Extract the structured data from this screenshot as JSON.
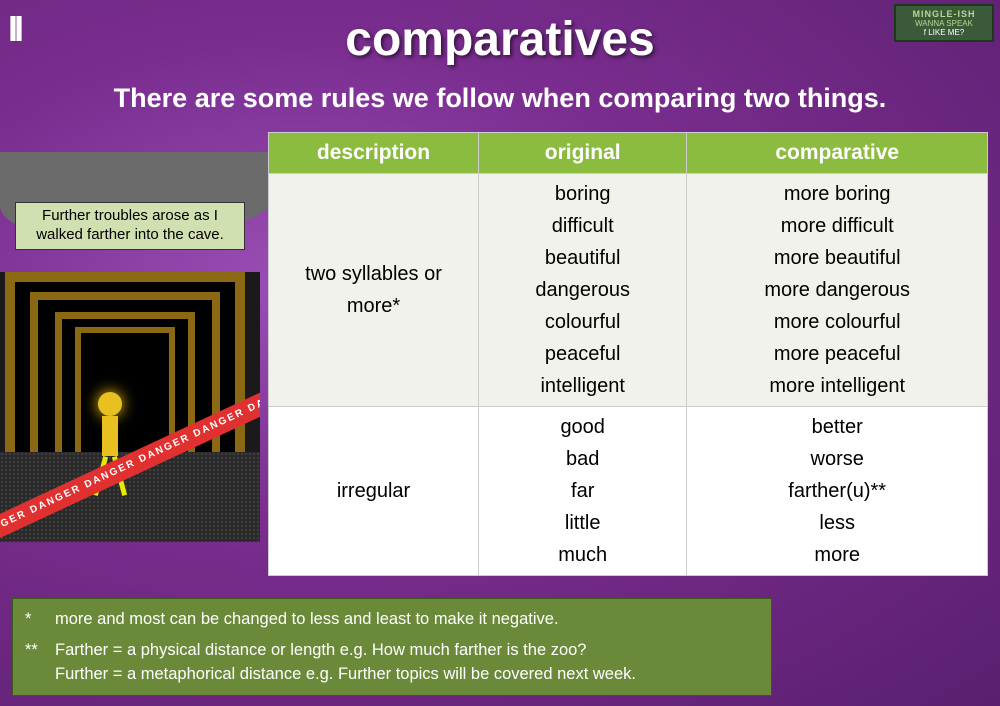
{
  "colors": {
    "bg_gradient_inner": "#9b4fb5",
    "bg_gradient_outer": "#5a1f6f",
    "header_green": "#8bbb3f",
    "row_alt": "#f2f2ec",
    "footnote_bg": "#6a8a3a",
    "speech_bg": "#d0e0b0",
    "danger_red": "#e03030"
  },
  "badge": {
    "title": "MINGLE-ISH",
    "sub": "WANNA SPEAK",
    "like": "f  LIKE ME?"
  },
  "title": "comparatives",
  "subtitle": "There are some rules we follow when comparing two things.",
  "speech": "Further troubles arose as I walked farther into the cave.",
  "danger_text": "DANGER   DANGER   DANGER   DANGER   DANGER   DANGER   DA",
  "table": {
    "headers": [
      "description",
      "original",
      "comparative"
    ],
    "rows": [
      {
        "desc": "two syllables or more*",
        "original": [
          "boring",
          "difficult",
          "beautiful",
          "dangerous",
          "colourful",
          "peaceful",
          "intelligent"
        ],
        "comparative": [
          "more boring",
          "more difficult",
          "more beautiful",
          "more dangerous",
          "more colourful",
          "more peaceful",
          "more intelligent"
        ],
        "alt": true
      },
      {
        "desc": "irregular",
        "original": [
          "good",
          "bad",
          "far",
          "little",
          "much"
        ],
        "comparative": [
          "better",
          "worse",
          "farther(u)**",
          "less",
          "more"
        ],
        "alt": false
      }
    ]
  },
  "footnotes": {
    "n1_mark": "*",
    "n1_text": "more and most can be changed to less and least to make it negative.",
    "n2_mark": "**",
    "n2_line1": "Farther = a physical distance or length e.g. How much farther is the zoo?",
    "n2_line2": "Further = a metaphorical distance e.g. Further topics will be covered next week."
  }
}
